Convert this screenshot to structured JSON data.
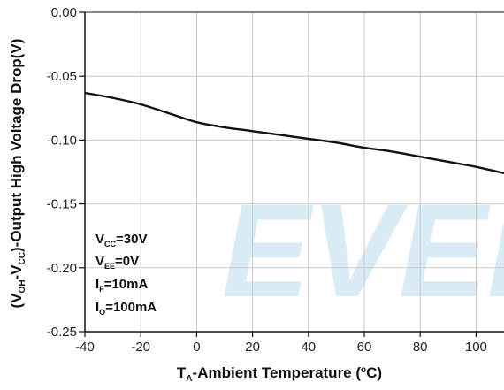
{
  "chart_data": {
    "type": "line",
    "title": "",
    "xlabel": {
      "main": "T",
      "sub": "A",
      "rest": "-Ambient Temperature (",
      "sup": "o",
      "end": "C)"
    },
    "ylabel": {
      "p1": "(V",
      "s1": "OH",
      "p2": "-V",
      "s2": "CC",
      "p3": ")-Output High Voltage Drop(V)"
    },
    "xlim": [
      -40,
      110
    ],
    "ylim": [
      -0.25,
      0.0
    ],
    "xticks": [
      -40,
      -20,
      0,
      20,
      40,
      60,
      80,
      100
    ],
    "xtick_labels": [
      "-40",
      "-20",
      "0",
      "20",
      "40",
      "60",
      "80",
      "100"
    ],
    "yticks": [
      0.0,
      -0.05,
      -0.1,
      -0.15,
      -0.2,
      -0.25
    ],
    "ytick_labels": [
      "0.00",
      "-0.05",
      "-0.10",
      "-0.15",
      "-0.20",
      "-0.25"
    ],
    "grid": true,
    "series": [
      {
        "x": [
          -40,
          -30,
          -20,
          -10,
          0,
          10,
          20,
          30,
          40,
          50,
          60,
          70,
          80,
          90,
          100,
          110
        ],
        "y": [
          -0.063,
          -0.067,
          -0.072,
          -0.079,
          -0.086,
          -0.09,
          -0.093,
          -0.096,
          -0.099,
          -0.102,
          -0.106,
          -0.109,
          -0.113,
          -0.117,
          -0.121,
          -0.126
        ]
      }
    ],
    "annotations": [
      {
        "main": "V",
        "sub": "CC",
        "rest": "=30V"
      },
      {
        "main": "V",
        "sub": "EE",
        "rest": "=0V"
      },
      {
        "main": "I",
        "sub": "F",
        "rest": "=10mA"
      },
      {
        "main": "I",
        "sub": "O",
        "rest": "=100mA"
      }
    ],
    "watermark": "EVER",
    "colors": {
      "line": "#111111",
      "grid": "#c9c9c9",
      "watermark": "#d9ebf5"
    }
  }
}
